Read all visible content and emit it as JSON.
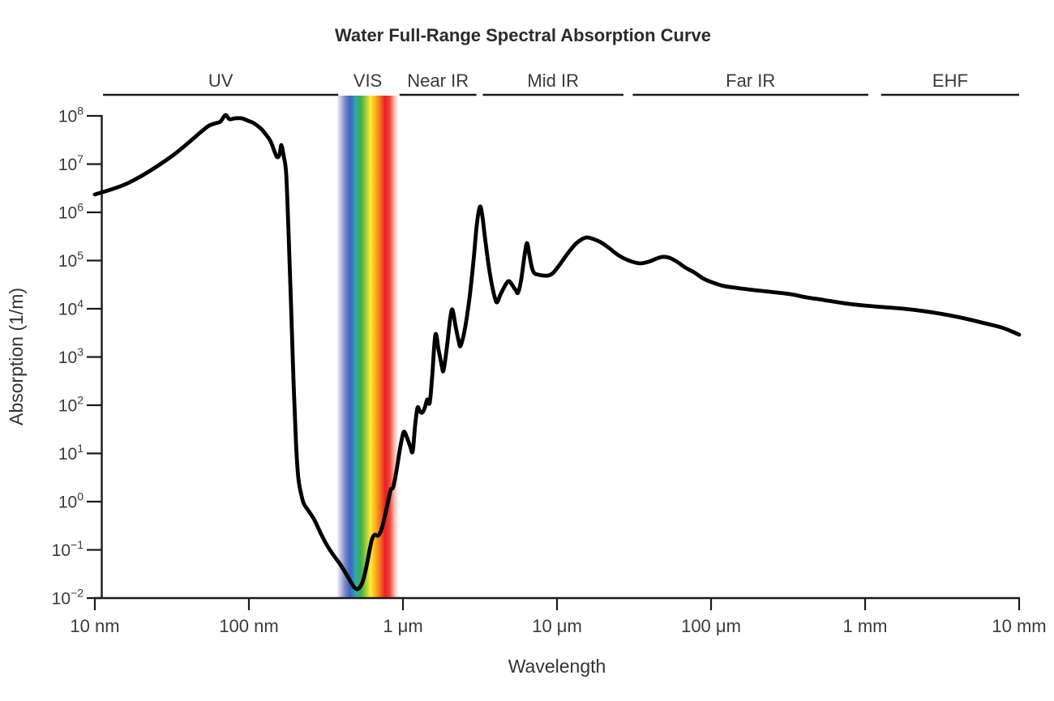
{
  "title": "Water Full-Range Spectral Absorption Curve",
  "colors": {
    "curve": "#000000",
    "axis": "#1a1a1a",
    "text": "#3a3a3a"
  },
  "chart_data": {
    "type": "line",
    "title": "Water Full-Range Spectral Absorption Curve",
    "xlabel": "Wavelength",
    "ylabel": "Absorption (1/m)",
    "x_scale": "log",
    "y_scale": "log",
    "x_range_nm": [
      10,
      10000000
    ],
    "y_range": [
      0.01,
      100000000
    ],
    "grid": false,
    "legend": "none",
    "x_ticks": [
      {
        "value_nm": 10,
        "label": "10 nm"
      },
      {
        "value_nm": 100,
        "label": "100 nm"
      },
      {
        "value_nm": 1000,
        "label": "1 μm"
      },
      {
        "value_nm": 10000,
        "label": "10 μm"
      },
      {
        "value_nm": 100000,
        "label": "100 μm"
      },
      {
        "value_nm": 1000000,
        "label": "1 mm"
      },
      {
        "value_nm": 10000000,
        "label": "10 mm"
      }
    ],
    "y_ticks": [
      {
        "value": 100000000,
        "base": "10",
        "exp": "8"
      },
      {
        "value": 10000000,
        "base": "10",
        "exp": "7"
      },
      {
        "value": 1000000,
        "base": "10",
        "exp": "6"
      },
      {
        "value": 100000,
        "base": "10",
        "exp": "5"
      },
      {
        "value": 10000,
        "base": "10",
        "exp": "4"
      },
      {
        "value": 1000,
        "base": "10",
        "exp": "3"
      },
      {
        "value": 100,
        "base": "10",
        "exp": "2"
      },
      {
        "value": 10,
        "base": "10",
        "exp": "1"
      },
      {
        "value": 1,
        "base": "10",
        "exp": "0"
      },
      {
        "value": 0.1,
        "base": "10",
        "exp": "−1"
      },
      {
        "value": 0.01,
        "base": "10",
        "exp": "−2"
      }
    ],
    "regions": [
      {
        "label": "UV",
        "line_nm": [
          11.3,
          380
        ],
        "band": false
      },
      {
        "label": "VIS",
        "line_nm": null,
        "band": true
      },
      {
        "label": "Near IR",
        "line_nm": [
          950,
          3000
        ],
        "band": false
      },
      {
        "label": "Mid IR",
        "line_nm": [
          3300,
          27000
        ],
        "band": false
      },
      {
        "label": "Far IR",
        "line_nm": [
          31000,
          1050000
        ],
        "band": false
      },
      {
        "label": "EHF",
        "line_nm": [
          1270000,
          10000000
        ],
        "band": false
      }
    ],
    "vis_band": {
      "span_nm": [
        370,
        941
      ],
      "gradient": [
        {
          "offset": 0.0,
          "color": "#ffffff"
        },
        {
          "offset": 0.075,
          "color": "#b9bcdf"
        },
        {
          "offset": 0.14,
          "color": "#7b85c8"
        },
        {
          "offset": 0.22,
          "color": "#3a66c3"
        },
        {
          "offset": 0.31,
          "color": "#2fa8a8"
        },
        {
          "offset": 0.39,
          "color": "#3fae49"
        },
        {
          "offset": 0.47,
          "color": "#9dcb3b"
        },
        {
          "offset": 0.545,
          "color": "#f9ed32"
        },
        {
          "offset": 0.635,
          "color": "#faa71d"
        },
        {
          "offset": 0.71,
          "color": "#f26522"
        },
        {
          "offset": 0.78,
          "color": "#ed1c24"
        },
        {
          "offset": 0.855,
          "color": "#ee4639"
        },
        {
          "offset": 0.93,
          "color": "#f9c0b5"
        },
        {
          "offset": 1.0,
          "color": "#ffffff"
        }
      ]
    },
    "series": [
      {
        "name": "water-absorption",
        "color": "#000000",
        "points": [
          [
            10,
            2340000.0
          ],
          [
            16.8,
            4190000.0
          ],
          [
            30.9,
            13900000.0
          ],
          [
            50.1,
            49800000.0
          ],
          [
            55.2,
            62900000.0
          ],
          [
            60.9,
            70600000.0
          ],
          [
            65.4,
            76300000.0
          ],
          [
            70.4,
            104000000.0
          ],
          [
            74.8,
            85700000.0
          ],
          [
            81.4,
            89000000.0
          ],
          [
            89.7,
            89000000.0
          ],
          [
            98.8,
            79300000.0
          ],
          [
            107.5,
            70600000.0
          ],
          [
            118.5,
            56000000.0
          ],
          [
            129,
            41100000.0
          ],
          [
            138.7,
            29000000.0
          ],
          [
            147.4,
            17500000.0
          ],
          [
            152.9,
            13900000.0
          ],
          [
            158.5,
            16200000.0
          ],
          [
            162.4,
            24800000.0
          ],
          [
            168.4,
            14400000.0
          ],
          [
            174.6,
            6160000.0
          ],
          [
            181.1,
            338000.0
          ],
          [
            187.8,
            11700.0
          ],
          [
            194.8,
            319
          ],
          [
            202,
            17.5
          ],
          [
            209.4,
            3.07
          ],
          [
            219.8,
            1.31
          ],
          [
            228,
            0.89
          ],
          [
            245.2,
            0.629
          ],
          [
            266.9,
            0.411
          ],
          [
            294.1,
            0.213
          ],
          [
            324,
            0.119
          ],
          [
            357,
            0.0748
          ],
          [
            393.2,
            0.0489
          ],
          [
            433.3,
            0.0296
          ],
          [
            471.6,
            0.0186
          ],
          [
            501.2,
            0.0153
          ],
          [
            532.5,
            0.0179
          ],
          [
            559,
            0.0273
          ],
          [
            586.6,
            0.0549
          ],
          [
            608.5,
            0.102
          ],
          [
            631,
            0.169
          ],
          [
            654.4,
            0.205
          ],
          [
            686.8,
            0.197
          ],
          [
            712.4,
            0.23
          ],
          [
            738.6,
            0.326
          ],
          [
            775.4,
            0.629
          ],
          [
            804.2,
            1.08
          ],
          [
            833.9,
            1.79
          ],
          [
            864.5,
            2.01
          ],
          [
            907.8,
            4.35
          ],
          [
            964.3,
            14.4
          ],
          [
            1012,
            27.9
          ],
          [
            1062,
            21.3
          ],
          [
            1115,
            13.9
          ],
          [
            1157,
            11
          ],
          [
            1199,
            38
          ],
          [
            1244,
            89
          ],
          [
            1290,
            73.4
          ],
          [
            1338,
            70.6
          ],
          [
            1387,
            89
          ],
          [
            1438,
            131
          ],
          [
            1492,
            112
          ],
          [
            1547,
            387
          ],
          [
            1624,
            2900
          ],
          [
            1705,
            1390
          ],
          [
            1789,
            641
          ],
          [
            1833,
            528
          ],
          [
            1925,
            1500
          ],
          [
            2020,
            5820
          ],
          [
            2095,
            9620
          ],
          [
            2198,
            4270
          ],
          [
            2308,
            2050
          ],
          [
            2364,
            1690
          ],
          [
            2481,
            2900
          ],
          [
            2605,
            7060
          ],
          [
            2734,
            22500.0
          ],
          [
            2871,
            98100.0
          ],
          [
            3013,
            538000.0
          ],
          [
            3162,
            1310000.0
          ],
          [
            3279,
            824000.0
          ],
          [
            3401,
            313000.0
          ],
          [
            3570,
            94400.0
          ],
          [
            3748,
            35900.0
          ],
          [
            3932,
            17900.0
          ],
          [
            4079,
            13600.0
          ],
          [
            4281,
            19300.0
          ],
          [
            4494,
            26300.0
          ],
          [
            4717,
            34500.0
          ],
          [
            4892,
            37300.0
          ],
          [
            5135,
            30700.0
          ],
          [
            5390,
            24400.0
          ],
          [
            5590,
            21700.0
          ],
          [
            5866,
            41900.0
          ],
          [
            6158,
            129000.0
          ],
          [
            6387,
            230000.0
          ],
          [
            6624,
            129000.0
          ],
          [
            6867,
            72000.0
          ],
          [
            7122,
            54900.0
          ],
          [
            7568,
            50800.0
          ],
          [
            8138,
            48900.0
          ],
          [
            8751,
            48900.0
          ],
          [
            9412,
            54900.0
          ],
          [
            10370,
            80800.0
          ],
          [
            11710,
            139000.0
          ],
          [
            13210,
            221000.0
          ],
          [
            14560,
            279000.0
          ],
          [
            15660,
            301000.0
          ],
          [
            17250,
            279000.0
          ],
          [
            19250,
            239000.0
          ],
          [
            21460,
            189000.0
          ],
          [
            24220,
            139000.0
          ],
          [
            27340,
            110000.0
          ],
          [
            30870,
            94400.0
          ],
          [
            34840,
            87300.0
          ],
          [
            39320,
            94400.0
          ],
          [
            44410,
            110000.0
          ],
          [
            48330,
            119000.0
          ],
          [
            53250,
            115000.0
          ],
          [
            60110,
            94400.0
          ],
          [
            67840,
            72000.0
          ],
          [
            77570,
            57000.0
          ],
          [
            89670,
            41900.0
          ],
          [
            103700,
            34500.0
          ],
          [
            121400,
            29600.0
          ],
          [
            143800,
            27300.0
          ],
          [
            172500,
            25300.0
          ],
          [
            214600,
            23400.0
          ],
          [
            266900,
            21700.0
          ],
          [
            328000,
            20100.0
          ],
          [
            417900,
            17200.0
          ],
          [
            532500,
            15300.0
          ],
          [
            720900,
            13100.0
          ],
          [
            976100,
            11700.0
          ],
          [
            1321000.0,
            10800.0
          ],
          [
            1789000.0,
            10000.0
          ],
          [
            2422000.0,
            8900
          ],
          [
            3280000.0,
            7630
          ],
          [
            4441000.0,
            6290
          ],
          [
            6011000.0,
            4980
          ],
          [
            7657000.0,
            4110
          ],
          [
            8967000.0,
            3380
          ],
          [
            10000000.0,
            2900
          ]
        ]
      }
    ]
  }
}
